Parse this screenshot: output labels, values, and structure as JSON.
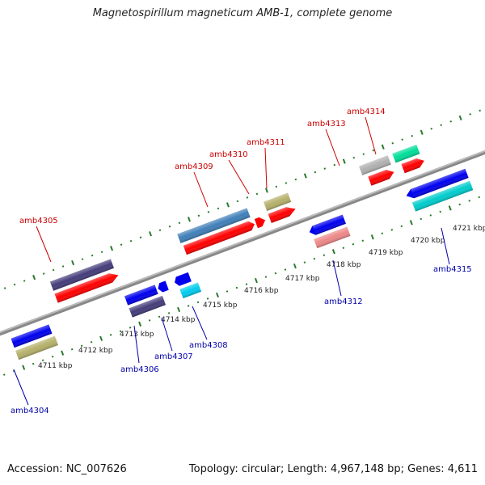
{
  "title": "Magnetospirillum magneticum AMB-1, complete genome",
  "footer": {
    "accession": "Accession: NC_007626",
    "summary": "Topology: circular; Length: 4,967,148 bp; Genes: 4,611"
  },
  "colors": {
    "top_label": "#cc0000",
    "bottom_label": "#0000aa",
    "tick": "#2a7a2a",
    "backbone": "#888888"
  },
  "kbp_labels": [
    {
      "id": "4711",
      "text": "4711 kbp"
    },
    {
      "id": "4712",
      "text": "4712 kbp"
    },
    {
      "id": "4713",
      "text": "4713 kbp"
    },
    {
      "id": "4714",
      "text": "4714 kbp"
    },
    {
      "id": "4715",
      "text": "4715 kbp"
    },
    {
      "id": "4716",
      "text": "4716 kbp"
    },
    {
      "id": "4717",
      "text": "4717 kbp"
    },
    {
      "id": "4718",
      "text": "4718 kbp"
    },
    {
      "id": "4719",
      "text": "4719 kbp"
    },
    {
      "id": "4720",
      "text": "4720 kbp"
    },
    {
      "id": "4721",
      "text": "4721 kbp"
    }
  ],
  "genes": [
    {
      "id": "amb4304",
      "label": "amb4304",
      "strand": "minus",
      "color": "#0000ee"
    },
    {
      "id": "amb4305",
      "label": "amb4305",
      "strand": "plus",
      "color": "#443d7a"
    },
    {
      "id": "amb4306",
      "label": "amb4306",
      "strand": "minus",
      "color": "#443d7a"
    },
    {
      "id": "amb4307",
      "label": "amb4307",
      "strand": "minus",
      "color": "#0000ee"
    },
    {
      "id": "amb4308",
      "label": "amb4308",
      "strand": "minus",
      "color": "#00ccee"
    },
    {
      "id": "amb4309",
      "label": "amb4309",
      "strand": "plus",
      "color": "#3f7fb8"
    },
    {
      "id": "amb4310",
      "label": "amb4310",
      "strand": "plus",
      "color": "#ff0000"
    },
    {
      "id": "amb4311",
      "label": "amb4311",
      "strand": "plus",
      "color": "#b5b06a"
    },
    {
      "id": "amb4312",
      "label": "amb4312",
      "strand": "minus",
      "color": "#0000ee"
    },
    {
      "id": "amb4313",
      "label": "amb4313",
      "strand": "plus",
      "color": "#b0b0b0"
    },
    {
      "id": "amb4314",
      "label": "amb4314",
      "strand": "plus",
      "color": "#00dd99"
    },
    {
      "id": "amb4315",
      "label": "amb4315",
      "strand": "minus",
      "color": "#0000ee"
    }
  ]
}
